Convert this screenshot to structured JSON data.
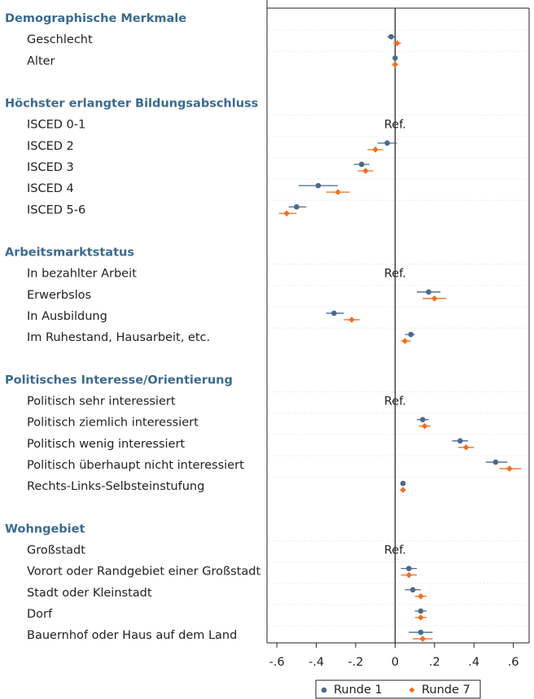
{
  "chart_data": {
    "type": "coefplot",
    "groups": [
      {
        "title": "Demographische Merkmale",
        "categories": [
          "Geschlecht",
          "Alter"
        ]
      },
      {
        "title": "Höchster erlangter Bildungsabschluss",
        "categories": [
          "ISCED 0-1",
          "ISCED 2",
          "ISCED 3",
          "ISCED 4",
          "ISCED 5-6"
        ]
      },
      {
        "title": "Arbeitsmarktstatus",
        "categories": [
          "In bezahlter Arbeit",
          "Erwerbslos",
          "In Ausbildung",
          "Im Ruhestand, Hausarbeit, etc."
        ]
      },
      {
        "title": "Politisches Interesse/Orientierung",
        "categories": [
          "Politisch sehr interessiert",
          "Politisch ziemlich interessiert",
          "Politisch wenig interessiert",
          "Politisch überhaupt nicht interessiert",
          "Rechts-Links-Selbsteinstufung"
        ]
      },
      {
        "title": "Wohngebiet",
        "categories": [
          "Großstadt",
          "Vorort oder Randgebiet einer Großstadt",
          "Stadt oder Kleinstadt",
          "Dorf",
          "Bauernhof oder Haus auf dem Land"
        ]
      }
    ],
    "reference_labels": [
      null,
      null,
      "Ref.",
      null,
      null,
      null,
      null,
      "Ref.",
      null,
      null,
      null,
      "Ref.",
      null,
      null,
      null,
      null,
      "Ref.",
      null,
      null,
      null,
      null
    ],
    "series": [
      {
        "name": "Runde 1",
        "color": "#4a6a8c",
        "marker": "circle",
        "values": [
          -0.02,
          0.0,
          null,
          -0.04,
          -0.17,
          -0.39,
          -0.5,
          null,
          0.17,
          -0.31,
          0.08,
          null,
          0.14,
          0.33,
          0.51,
          0.04,
          null,
          0.07,
          0.09,
          0.13,
          0.13
        ],
        "lower": [
          -0.04,
          0.0,
          null,
          -0.09,
          -0.21,
          -0.49,
          -0.54,
          null,
          0.11,
          -0.35,
          0.05,
          null,
          0.11,
          0.29,
          0.46,
          0.035,
          null,
          0.03,
          0.05,
          0.1,
          0.07
        ],
        "upper": [
          0.0,
          0.0,
          null,
          0.01,
          -0.13,
          -0.29,
          -0.45,
          null,
          0.23,
          -0.26,
          0.1,
          null,
          0.17,
          0.37,
          0.57,
          0.045,
          null,
          0.11,
          0.13,
          0.16,
          0.19
        ]
      },
      {
        "name": "Runde 7",
        "color": "#f07020",
        "marker": "diamond",
        "values": [
          0.01,
          0.0,
          null,
          -0.1,
          -0.15,
          -0.29,
          -0.55,
          null,
          0.2,
          -0.22,
          0.05,
          null,
          0.15,
          0.36,
          0.58,
          0.04,
          null,
          0.07,
          0.13,
          0.13,
          0.14
        ],
        "lower": [
          -0.01,
          0.0,
          null,
          -0.14,
          -0.19,
          -0.35,
          -0.59,
          null,
          0.14,
          -0.26,
          0.03,
          null,
          0.12,
          0.32,
          0.53,
          0.035,
          null,
          0.03,
          0.1,
          0.1,
          0.09
        ],
        "upper": [
          0.03,
          0.0,
          null,
          -0.06,
          -0.11,
          -0.23,
          -0.5,
          null,
          0.26,
          -0.18,
          0.08,
          null,
          0.18,
          0.4,
          0.64,
          0.045,
          null,
          0.11,
          0.16,
          0.16,
          0.19
        ]
      }
    ],
    "xlim": [
      -0.65,
      0.68
    ],
    "xticks": [
      {
        "value": -0.6,
        "label": "-.6"
      },
      {
        "value": -0.4,
        "label": "-.4"
      },
      {
        "value": -0.2,
        "label": "-.2"
      },
      0,
      {
        "value": 0.2,
        "label": ".2"
      },
      {
        "value": 0.4,
        "label": ".4"
      },
      {
        "value": 0.6,
        "label": ".6"
      }
    ],
    "legend": "bottom"
  }
}
